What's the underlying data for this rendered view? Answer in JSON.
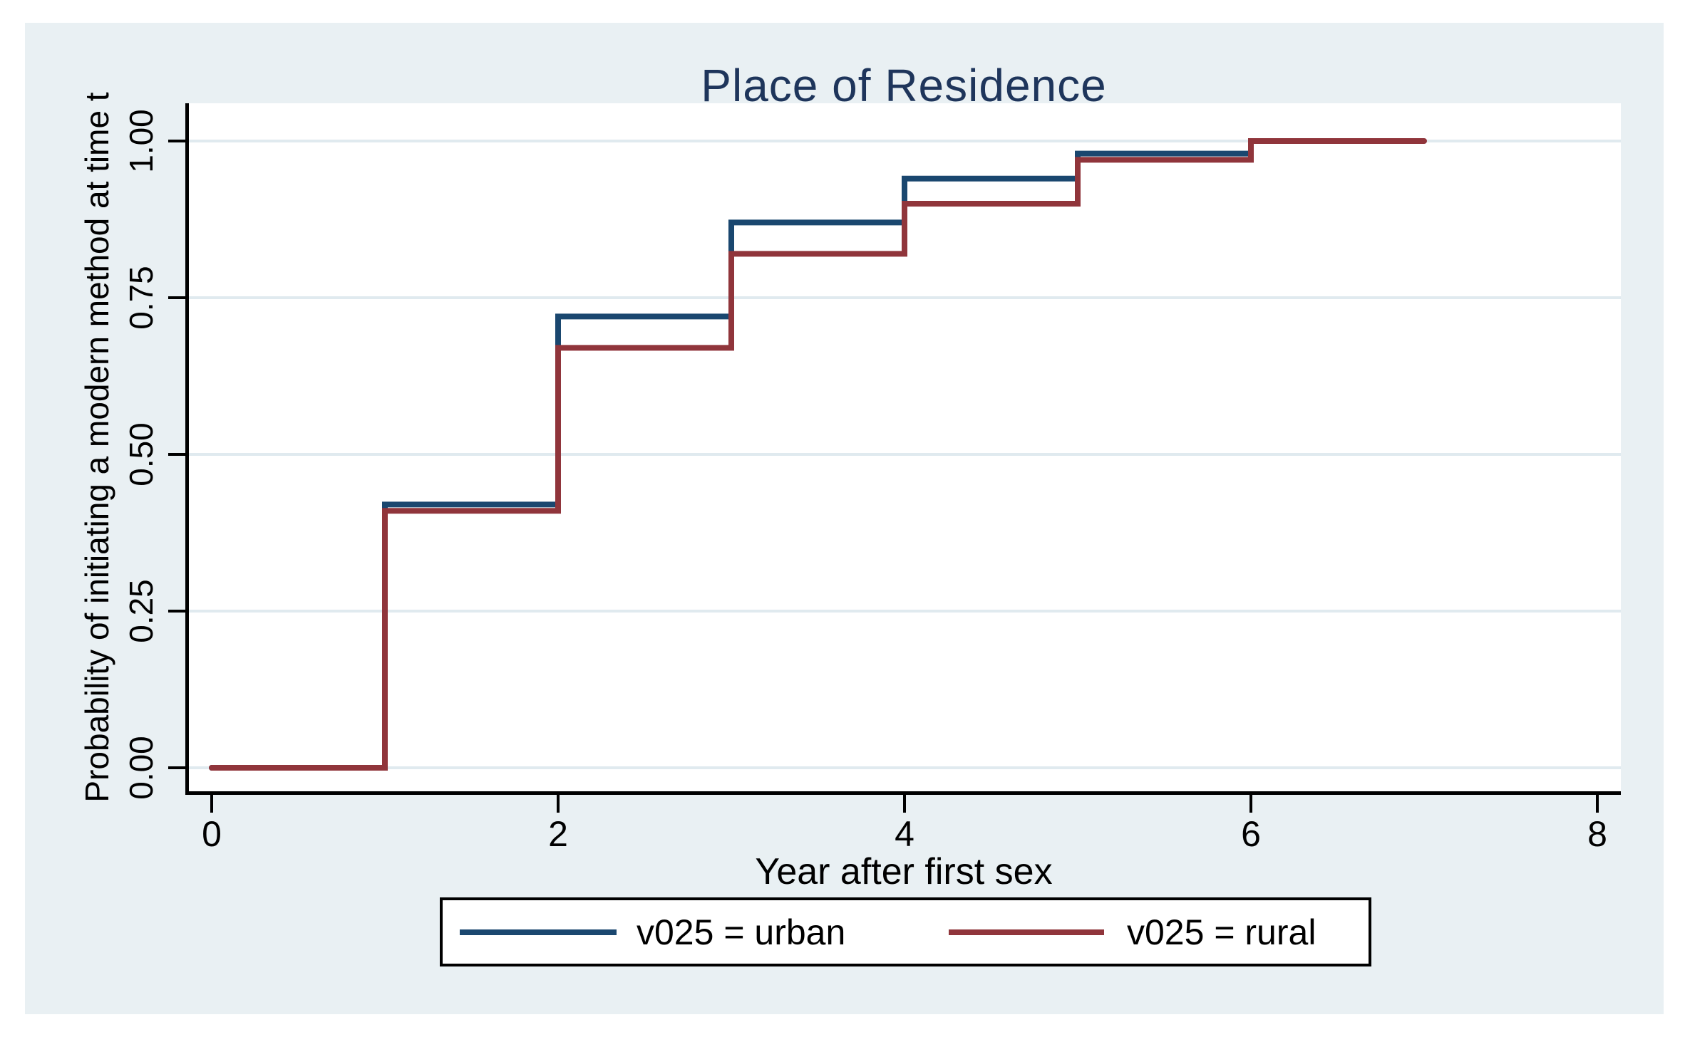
{
  "figure": {
    "title": "Place of Residence",
    "title_color": "#1E355B",
    "background_color": "#E9F0F3",
    "plot_background": "#FFFFFF",
    "grid_color": "#E0EAEF",
    "axis_color": "#000000"
  },
  "chart_data": {
    "type": "line",
    "subtype": "step",
    "title": "Place of Residence",
    "xlabel": "Year after first sex",
    "ylabel": "Probability of initiating a modern method at time t",
    "xlim": [
      0,
      8
    ],
    "ylim": [
      0.0,
      1.0
    ],
    "x_ticks": [
      0,
      2,
      4,
      6,
      8
    ],
    "x_tick_labels": [
      "0",
      "2",
      "4",
      "6",
      "8"
    ],
    "y_ticks": [
      0.0,
      0.25,
      0.5,
      0.75,
      1.0
    ],
    "y_tick_labels": [
      "0.00",
      "0.25",
      "0.50",
      "0.75",
      "1.00"
    ],
    "grid": "horizontal",
    "legend_position": "bottom",
    "series": [
      {
        "name": "v025 = urban",
        "color": "#1A476F",
        "points": [
          [
            0,
            0
          ],
          [
            1,
            0
          ],
          [
            1,
            0.42
          ],
          [
            2,
            0.42
          ],
          [
            2,
            0.72
          ],
          [
            3,
            0.72
          ],
          [
            3,
            0.87
          ],
          [
            4,
            0.87
          ],
          [
            4,
            0.94
          ],
          [
            5,
            0.94
          ],
          [
            5,
            0.98
          ],
          [
            6,
            0.98
          ],
          [
            6,
            1.0
          ]
        ]
      },
      {
        "name": "v025 = rural",
        "color": "#90353B",
        "points": [
          [
            0,
            0
          ],
          [
            1,
            0
          ],
          [
            1,
            0.41
          ],
          [
            2,
            0.41
          ],
          [
            2,
            0.67
          ],
          [
            3,
            0.67
          ],
          [
            3,
            0.82
          ],
          [
            4,
            0.82
          ],
          [
            4,
            0.9
          ],
          [
            5,
            0.9
          ],
          [
            5,
            0.97
          ],
          [
            6,
            0.97
          ],
          [
            6,
            1.0
          ],
          [
            7,
            1.0
          ]
        ]
      }
    ]
  },
  "legend": {
    "items": [
      {
        "label": "v025 = urban",
        "color": "#1A476F"
      },
      {
        "label": "v025 = rural",
        "color": "#90353B"
      }
    ]
  }
}
